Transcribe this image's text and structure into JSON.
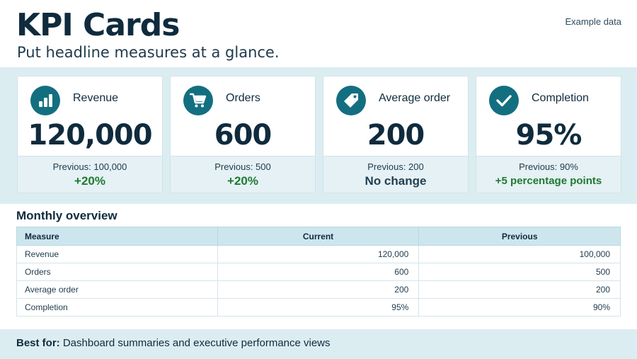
{
  "header": {
    "title": "KPI Cards",
    "subtitle": "Put headline measures at a glance.",
    "tag": "Example data"
  },
  "cards": [
    {
      "icon": "bar-chart-icon",
      "label": "Revenue",
      "value": "120,000",
      "previous": "Previous: 100,000",
      "change": "+20%",
      "change_status": "positive"
    },
    {
      "icon": "shopping-cart-icon",
      "label": "Orders",
      "value": "600",
      "previous": "Previous: 500",
      "change": "+20%",
      "change_status": "positive"
    },
    {
      "icon": "price-tag-icon",
      "label": "Average order",
      "value": "200",
      "previous": "Previous: 200",
      "change": "No change",
      "change_status": "neutral"
    },
    {
      "icon": "checkmark-icon",
      "label": "Completion",
      "value": "95%",
      "previous": "Previous: 90%",
      "change": "+5 percentage points",
      "change_status": "positive"
    }
  ],
  "overview": {
    "title": "Monthly overview",
    "columns": [
      "Measure",
      "Current",
      "Previous"
    ],
    "rows": [
      [
        "Revenue",
        "120,000",
        "100,000"
      ],
      [
        "Orders",
        "600",
        "500"
      ],
      [
        "Average order",
        "200",
        "200"
      ],
      [
        "Completion",
        "95%",
        "90%"
      ]
    ]
  },
  "footer": {
    "label": "Best for:",
    "text": "Dashboard summaries and executive performance views"
  },
  "colors": {
    "accent": "#136f80",
    "positive": "#1f7a32",
    "band": "#dcedf2"
  }
}
